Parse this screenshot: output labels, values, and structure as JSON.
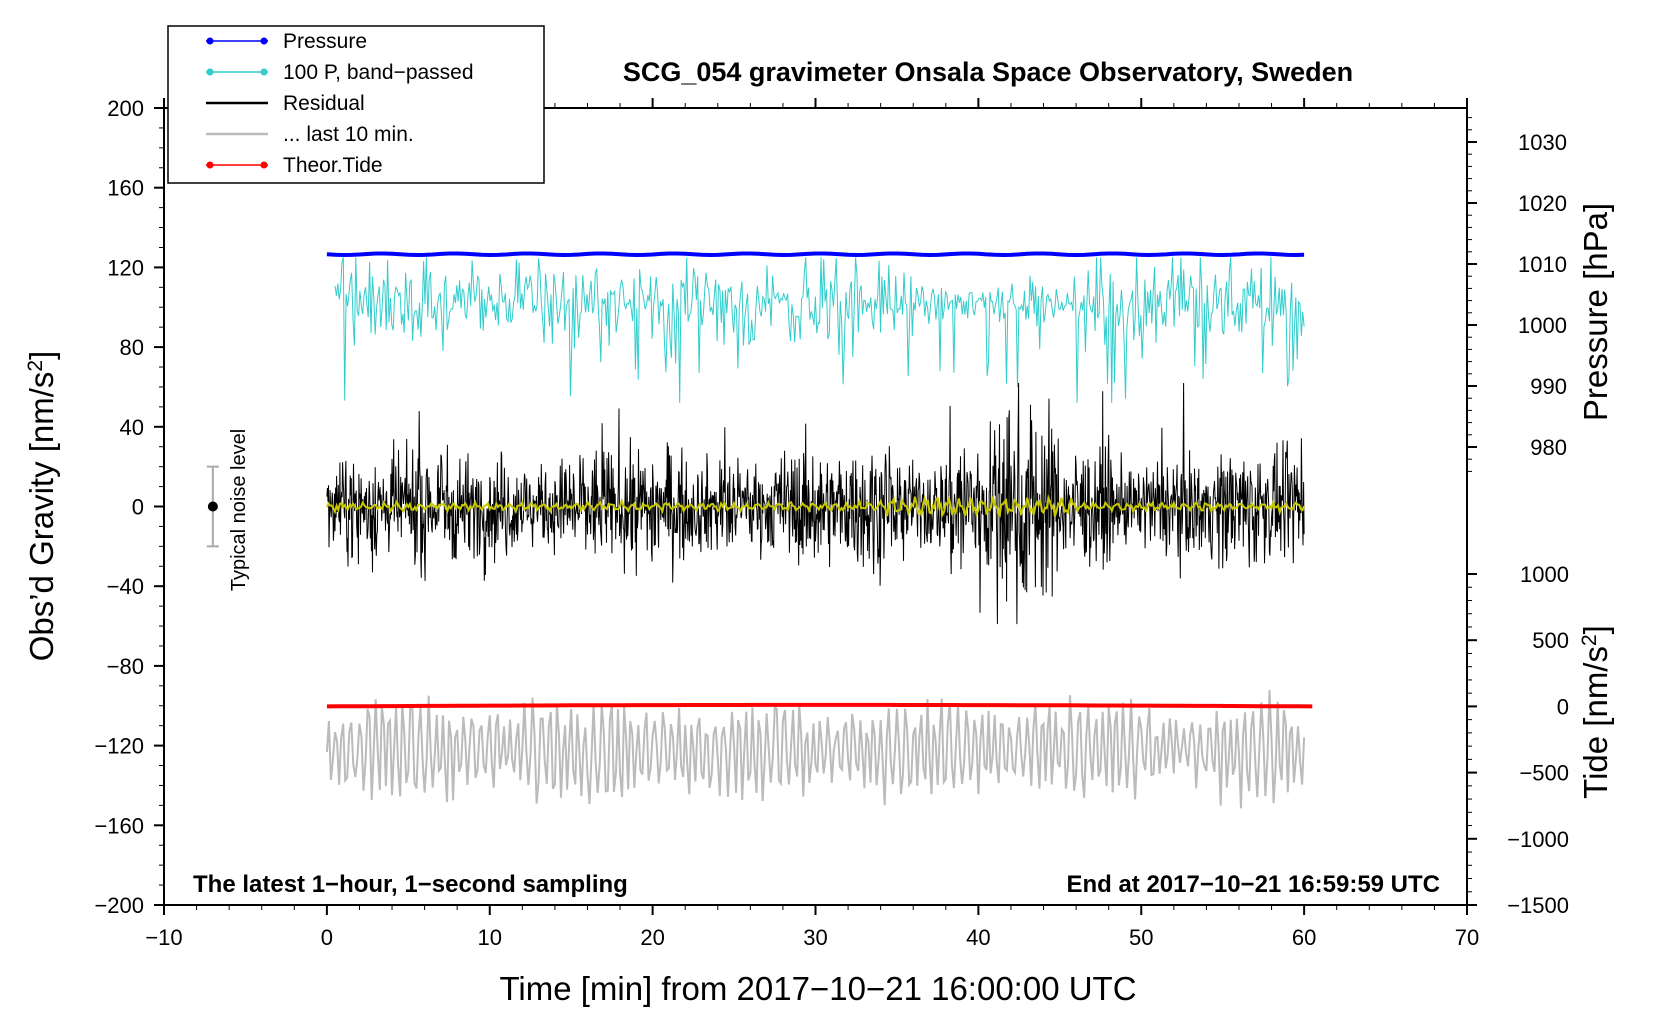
{
  "chart_data": {
    "type": "line",
    "title": "SCG_054 gravimeter Onsala Space Observatory, Sweden",
    "xlabel": "Time [min] from 2017−10−21 16:00:00 UTC",
    "ylabel_left": "Obs’d Gravity [nm/s",
    "ylabel_left_sup": "2",
    "ylabel_left_close": "]",
    "ylabel_right_pressure": "Pressure [hPa]",
    "ylabel_right_tide": "Tide [nm/s",
    "ylabel_right_tide_sup": "2",
    "ylabel_right_tide_close": "]",
    "xlim": [
      -10,
      70
    ],
    "ylim": [
      -200,
      200
    ],
    "x_ticks": [
      "−10",
      "0",
      "10",
      "20",
      "30",
      "40",
      "50",
      "60",
      "70"
    ],
    "y_ticks": [
      "−200",
      "−160",
      "−120",
      "−80",
      "−40",
      "0",
      "40",
      "80",
      "120",
      "160",
      "200"
    ],
    "pressure_axis": {
      "ticks": [
        "980",
        "990",
        "1000",
        "1010",
        "1020",
        "1030"
      ],
      "range": [
        975,
        1035
      ]
    },
    "tide_axis": {
      "ticks": [
        "−1500",
        "−1000",
        "−500",
        "0",
        "500",
        "1000"
      ],
      "range": [
        -1500,
        1000
      ]
    },
    "legend": [
      {
        "label": "Pressure",
        "color": "#0000ff",
        "marker": true
      },
      {
        "label": "100 P, band−passed",
        "color": "#33cccc",
        "marker": true
      },
      {
        "label": "Residual",
        "color": "#000000",
        "marker": false
      },
      {
        "label": "... last 10 min.",
        "color": "#bbbbbb",
        "marker": false
      },
      {
        "label": "Theor.Tide",
        "color": "#ff0000",
        "marker": true
      }
    ],
    "series": [
      {
        "name": "Pressure",
        "color": "#0000ff",
        "axis": "pressure",
        "x_range": [
          0,
          60
        ],
        "level": 1011.6
      },
      {
        "name": "100 P, band−passed",
        "color": "#33cccc",
        "axis": "gravity",
        "x_range": [
          0,
          60
        ],
        "center": 102,
        "min": 52,
        "max": 125
      },
      {
        "name": "Residual",
        "color": "#000000",
        "axis": "gravity",
        "x_range": [
          0,
          60
        ],
        "center": 0,
        "min": -59,
        "max": 62
      },
      {
        "name": "Residual smoothed",
        "color": "#cccc00",
        "axis": "gravity",
        "x_range": [
          0,
          60
        ],
        "center": 0
      },
      {
        "name": "... last 10 min.",
        "color": "#bbbbbb",
        "axis": "gravity",
        "x_range": [
          0,
          60
        ],
        "center": -122,
        "min": -162,
        "max": -76
      },
      {
        "name": "Theor.Tide",
        "color": "#ff0000",
        "axis": "tide",
        "x_range": [
          0,
          60.5
        ],
        "level": 0
      }
    ],
    "noise_level": {
      "label": "Typical noise level",
      "x": -7,
      "center": 0,
      "halfwidth": 20
    },
    "note_left": "The latest 1−hour, 1−second sampling",
    "note_right": "End at 2017−10−21 16:59:59 UTC"
  },
  "colors": {
    "pressure": "#0000ff",
    "bandpassed": "#33cccc",
    "residual": "#000000",
    "smoothed": "#c8c800",
    "last10": "#bbbbbb",
    "tide": "#ff0000",
    "noise_bar": "#aaaaaa"
  }
}
